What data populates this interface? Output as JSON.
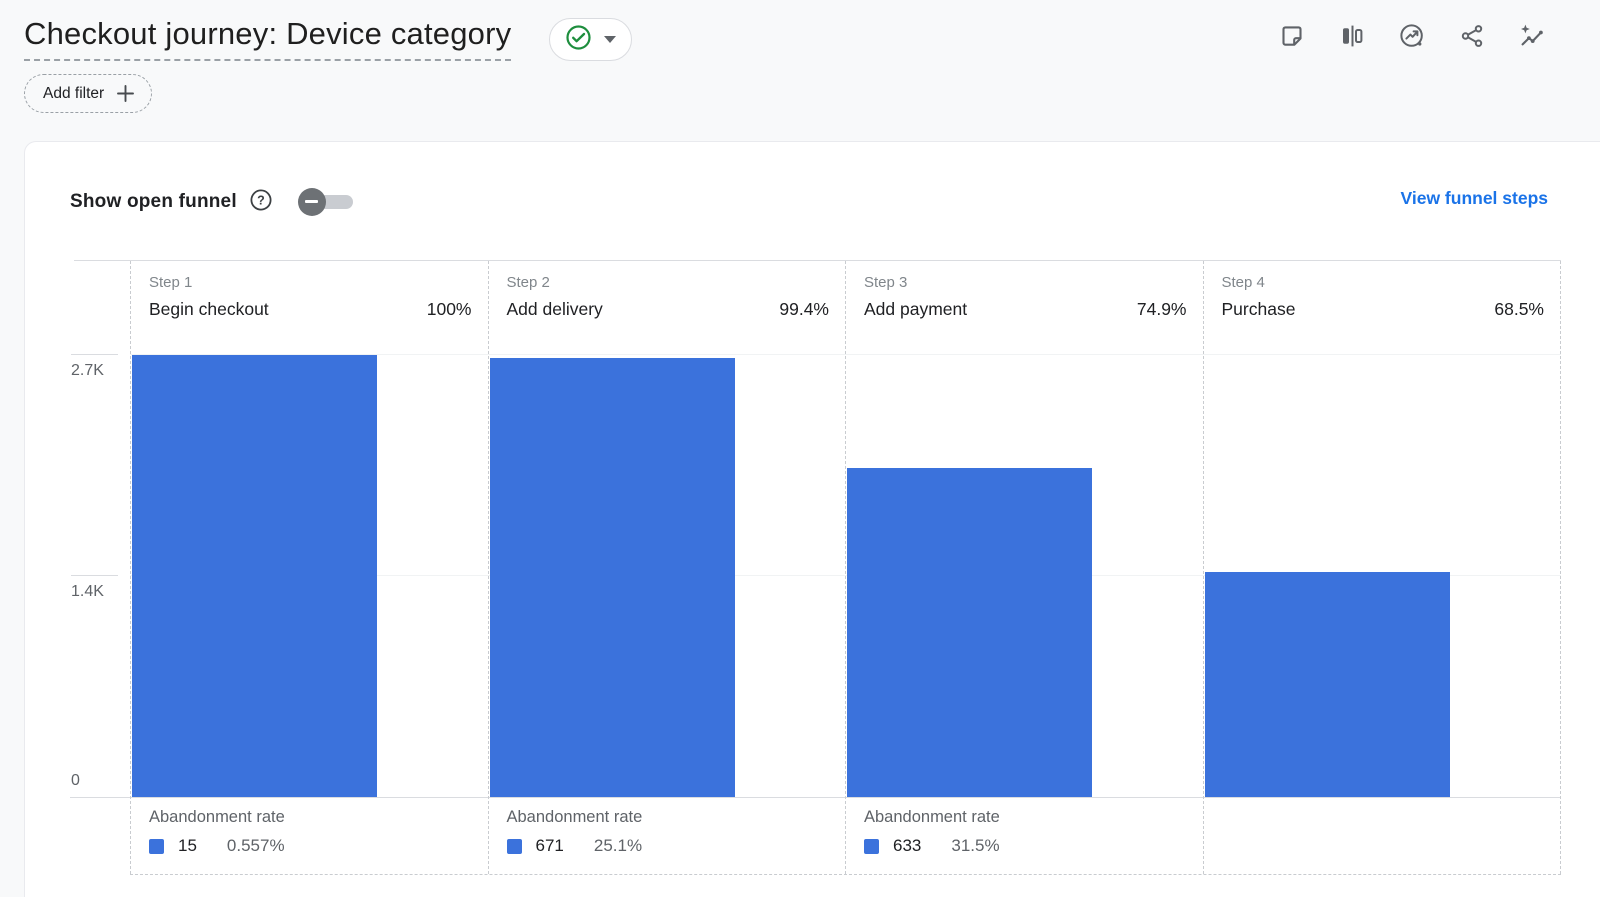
{
  "header": {
    "title": "Checkout journey: Device category",
    "add_filter_label": "Add filter",
    "toolbar_icons": [
      "note",
      "compare-columns",
      "insights",
      "share",
      "trend-sparkle"
    ]
  },
  "panel": {
    "show_open_funnel_label": "Show open funnel",
    "view_funnel_steps_label": "View funnel steps",
    "toggle_state": "off"
  },
  "chart_data": {
    "type": "bar",
    "title": "Checkout journey: Device category funnel",
    "xlabel": "",
    "ylabel": "",
    "y_ticks": [
      "2.7K",
      "1.4K",
      "0"
    ],
    "ylim": [
      0,
      2700
    ],
    "grid": true,
    "legend_position": "none",
    "bar_color": "#3b72dc",
    "steps": [
      {
        "step_label": "Step 1",
        "name": "Begin checkout",
        "completion_rate": "100%",
        "users_approx": 2692,
        "abandonment_label": "Abandonment rate",
        "abandonment_count": "15",
        "abandonment_rate": "0.557%"
      },
      {
        "step_label": "Step 2",
        "name": "Add delivery",
        "completion_rate": "99.4%",
        "users_approx": 2677,
        "abandonment_label": "Abandonment rate",
        "abandonment_count": "671",
        "abandonment_rate": "25.1%"
      },
      {
        "step_label": "Step 3",
        "name": "Add payment",
        "completion_rate": "74.9%",
        "users_approx": 2006,
        "abandonment_label": "Abandonment rate",
        "abandonment_count": "633",
        "abandonment_rate": "31.5%"
      },
      {
        "step_label": "Step 4",
        "name": "Purchase",
        "completion_rate": "68.5%",
        "users_approx": 1374
      }
    ]
  },
  "colors": {
    "bar_blue": "#3b72dc",
    "link_blue": "#1a73e8",
    "check_green": "#1e8e3e",
    "text_dark": "#202124",
    "text_gray": "#5f6368",
    "line_gray": "#dadce0"
  }
}
